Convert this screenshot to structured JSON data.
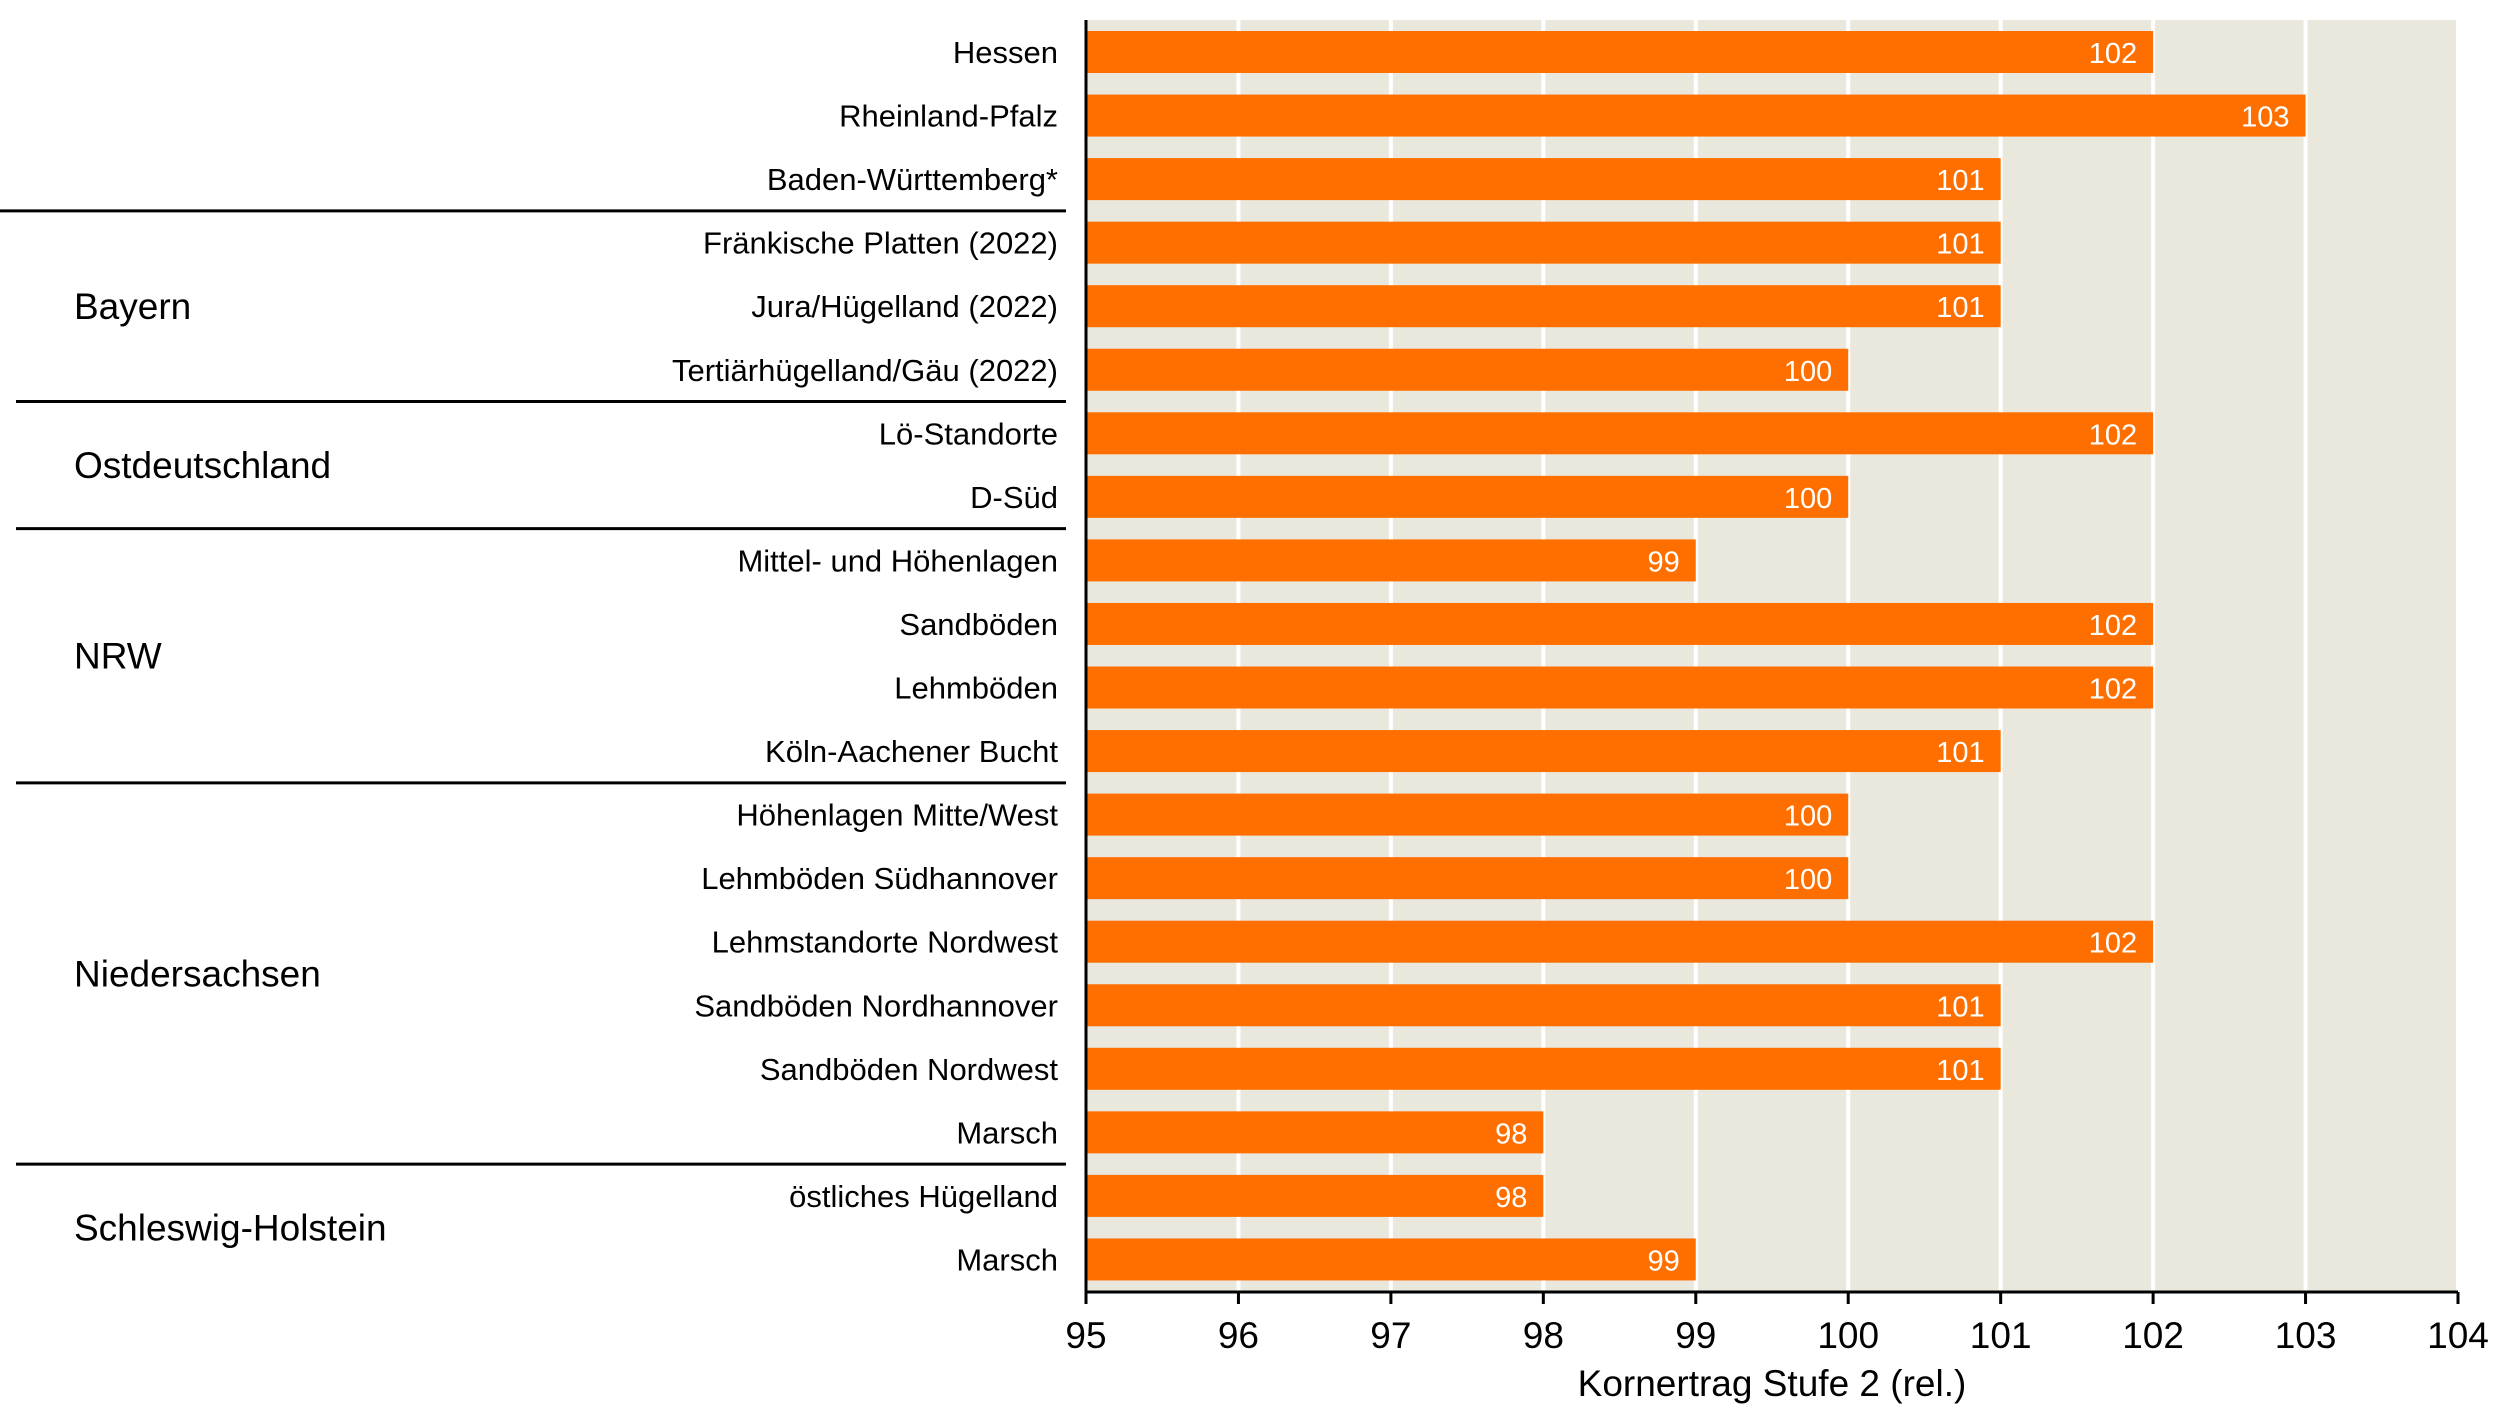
{
  "colors": {
    "bar": "#ff6f00",
    "plot_background": "#eae7dd",
    "gridline": "#ffffff",
    "axis": "#000000",
    "value_label": "#ffffff"
  },
  "chart_data": {
    "type": "bar",
    "orientation": "horizontal",
    "xlabel": "Kornertrag Stufe 2 (rel.)",
    "xlim": [
      95,
      104
    ],
    "x_ticks": [
      "95",
      "96",
      "97",
      "98",
      "99",
      "100",
      "101",
      "102",
      "103",
      "104"
    ],
    "grid": "vertical",
    "categories": [
      "Hessen",
      "Rheinland-Pfalz",
      "Baden-Württemberg*",
      "Fränkische Platten (2022)",
      "Jura/Hügelland (2022)",
      "Tertiärhügelland/Gäu (2022)",
      "Lö-Standorte",
      "D-Süd",
      "Mittel- und Höhenlagen",
      "Sandböden",
      "Lehmböden",
      "Köln-Aachener Bucht",
      "Höhenlagen Mitte/West",
      "Lehmböden Südhannover",
      "Lehmstandorte Nordwest",
      "Sandböden Nordhannover",
      "Sandböden Nordwest",
      "Marsch",
      "östliches Hügelland",
      "Marsch"
    ],
    "values": [
      102,
      103,
      101,
      101,
      101,
      100,
      102,
      100,
      99,
      102,
      102,
      101,
      100,
      100,
      102,
      101,
      101,
      98,
      98,
      99
    ],
    "value_labels": [
      "102",
      "103",
      "101",
      "101",
      "101",
      "100",
      "102",
      "100",
      "99",
      "102",
      "102",
      "101",
      "100",
      "100",
      "102",
      "101",
      "101",
      "98",
      "98",
      "99"
    ],
    "groups": [
      {
        "label": "Bayern",
        "first": 3,
        "last": 5
      },
      {
        "label": "Ostdeutschland",
        "first": 6,
        "last": 7
      },
      {
        "label": "NRW",
        "first": 8,
        "last": 11
      },
      {
        "label": "Niedersachsen",
        "first": 12,
        "last": 17
      },
      {
        "label": "Schleswig-Holstein",
        "first": 18,
        "last": 19
      }
    ]
  }
}
